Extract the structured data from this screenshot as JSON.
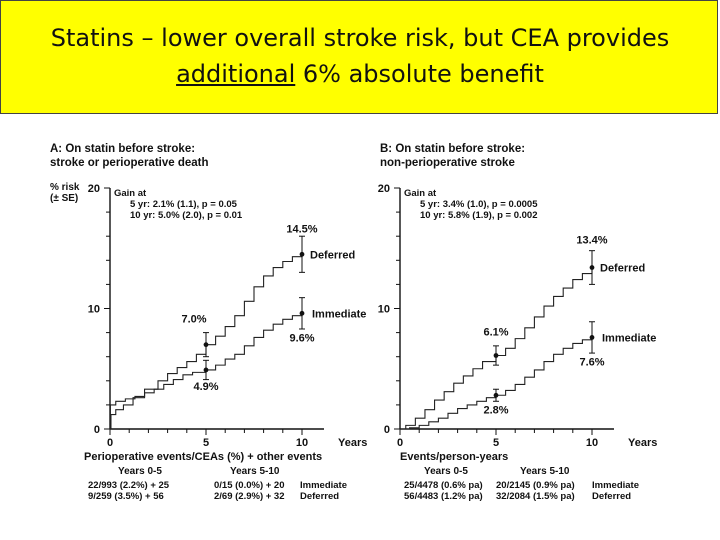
{
  "slide": {
    "title_line1": "Statins – lower overall stroke risk, but CEA provides",
    "title_underlined": "additional",
    "title_rest": " 6% absolute benefit",
    "band_color": "#ffff00"
  },
  "chart_data": [
    {
      "type": "line",
      "panel_title": [
        "A: On statin before stroke:",
        "stroke or perioperative death"
      ],
      "ylabel": [
        "% risk",
        "(± SE)"
      ],
      "xlabel": "Years",
      "ylim": [
        0,
        20
      ],
      "xlim": [
        0,
        10
      ],
      "yticks": [
        "0",
        "10",
        "20"
      ],
      "xticks": [
        "0",
        "5",
        "10"
      ],
      "gain": [
        "Gain at",
        "5 yr: 2.1% (1.1), p = 0.05",
        "10 yr: 5.0% (2.0), p = 0.01"
      ],
      "series": [
        {
          "name": "Deferred",
          "points": [
            [
              0,
              0
            ],
            [
              0.05,
              1.2
            ],
            [
              0.3,
              1.6
            ],
            [
              0.7,
              2.0
            ],
            [
              1.2,
              2.6
            ],
            [
              1.8,
              3.3
            ],
            [
              2.5,
              4.0
            ],
            [
              3.0,
              4.6
            ],
            [
              3.5,
              5.1
            ],
            [
              4.0,
              5.6
            ],
            [
              4.5,
              6.2
            ],
            [
              5.0,
              7.0
            ],
            [
              5.5,
              7.7
            ],
            [
              6.0,
              8.5
            ],
            [
              6.5,
              9.4
            ],
            [
              7.0,
              10.6
            ],
            [
              7.5,
              11.8
            ],
            [
              8.0,
              12.7
            ],
            [
              8.5,
              13.4
            ],
            [
              9.0,
              13.9
            ],
            [
              9.5,
              14.3
            ],
            [
              10.0,
              14.5
            ]
          ],
          "markers": [
            {
              "x": 5,
              "y": 7.0,
              "se": 1.0,
              "label": "7.0%"
            },
            {
              "x": 10,
              "y": 14.5,
              "se": 1.5,
              "label": "14.5%"
            }
          ]
        },
        {
          "name": "Immediate",
          "points": [
            [
              0,
              0
            ],
            [
              0.02,
              2.0
            ],
            [
              0.3,
              2.3
            ],
            [
              0.8,
              2.5
            ],
            [
              1.3,
              2.7
            ],
            [
              1.8,
              3.0
            ],
            [
              2.3,
              3.3
            ],
            [
              2.8,
              3.7
            ],
            [
              3.3,
              4.1
            ],
            [
              3.8,
              4.5
            ],
            [
              4.3,
              4.7
            ],
            [
              5.0,
              4.9
            ],
            [
              5.5,
              5.3
            ],
            [
              6.0,
              5.8
            ],
            [
              6.5,
              6.2
            ],
            [
              7.0,
              6.9
            ],
            [
              7.5,
              7.6
            ],
            [
              8.0,
              8.2
            ],
            [
              8.5,
              8.7
            ],
            [
              9.0,
              9.1
            ],
            [
              9.5,
              9.4
            ],
            [
              10.0,
              9.6
            ]
          ],
          "markers": [
            {
              "x": 5,
              "y": 4.9,
              "se": 0.8,
              "label": "4.9%"
            },
            {
              "x": 10,
              "y": 9.6,
              "se": 1.3,
              "label": "9.6%"
            }
          ]
        }
      ],
      "footer_header": "Perioperative events/CEAs (%) + other events",
      "footer_cols": [
        "Years 0-5",
        "Years 5-10"
      ],
      "footer_rows": [
        {
          "c1": "22/993 (2.2%) + 25",
          "c2": "0/15 (0.0%) + 20",
          "label": "Immediate"
        },
        {
          "c1": "9/259 (3.5%) + 56",
          "c2": "2/69 (2.9%) + 32",
          "label": "Deferred"
        }
      ]
    },
    {
      "type": "line",
      "panel_title": [
        "B: On statin before stroke:",
        "non-perioperative stroke"
      ],
      "ylabel": [],
      "xlabel": "Years",
      "ylim": [
        0,
        20
      ],
      "xlim": [
        0,
        10
      ],
      "yticks": [
        "0",
        "10",
        "20"
      ],
      "xticks": [
        "0",
        "5",
        "10"
      ],
      "gain": [
        "Gain at",
        "5 yr: 3.4% (1.0), p = 0.0005",
        "10 yr: 5.8% (1.9), p = 0.002"
      ],
      "series": [
        {
          "name": "Deferred",
          "points": [
            [
              0,
              0
            ],
            [
              0.3,
              0.3
            ],
            [
              0.8,
              0.9
            ],
            [
              1.3,
              1.6
            ],
            [
              1.8,
              2.4
            ],
            [
              2.3,
              3.1
            ],
            [
              2.8,
              3.8
            ],
            [
              3.3,
              4.4
            ],
            [
              3.8,
              5.0
            ],
            [
              4.3,
              5.6
            ],
            [
              5.0,
              6.1
            ],
            [
              5.5,
              6.7
            ],
            [
              6.0,
              7.5
            ],
            [
              6.5,
              8.4
            ],
            [
              7.0,
              9.3
            ],
            [
              7.5,
              10.2
            ],
            [
              8.0,
              11.0
            ],
            [
              8.5,
              11.7
            ],
            [
              9.0,
              12.4
            ],
            [
              9.5,
              12.9
            ],
            [
              10.0,
              13.4
            ]
          ],
          "markers": [
            {
              "x": 5,
              "y": 6.1,
              "se": 0.8,
              "label": "6.1%"
            },
            {
              "x": 10,
              "y": 13.4,
              "se": 1.4,
              "label": "13.4%"
            }
          ]
        },
        {
          "name": "Immediate",
          "points": [
            [
              0,
              0
            ],
            [
              0.5,
              0.1
            ],
            [
              1.0,
              0.3
            ],
            [
              1.5,
              0.6
            ],
            [
              2.0,
              0.9
            ],
            [
              2.5,
              1.3
            ],
            [
              3.0,
              1.7
            ],
            [
              3.5,
              2.0
            ],
            [
              4.0,
              2.3
            ],
            [
              4.5,
              2.6
            ],
            [
              5.0,
              2.8
            ],
            [
              5.5,
              3.2
            ],
            [
              6.0,
              3.7
            ],
            [
              6.5,
              4.3
            ],
            [
              7.0,
              4.9
            ],
            [
              7.5,
              5.6
            ],
            [
              8.0,
              6.2
            ],
            [
              8.5,
              6.7
            ],
            [
              9.0,
              7.1
            ],
            [
              9.5,
              7.4
            ],
            [
              10.0,
              7.6
            ]
          ],
          "markers": [
            {
              "x": 5,
              "y": 2.8,
              "se": 0.5,
              "label": "2.8%"
            },
            {
              "x": 10,
              "y": 7.6,
              "se": 1.3,
              "label": "7.6%"
            }
          ]
        }
      ],
      "footer_header": "Events/person-years",
      "footer_cols": [
        "Years 0-5",
        "Years 5-10"
      ],
      "footer_rows": [
        {
          "c1": "25/4478 (0.6% pa)",
          "c2": "20/2145 (0.9% pa)",
          "label": "Immediate"
        },
        {
          "c1": "56/4483 (1.2% pa)",
          "c2": "32/2084 (1.5% pa)",
          "label": "Deferred"
        }
      ]
    }
  ]
}
